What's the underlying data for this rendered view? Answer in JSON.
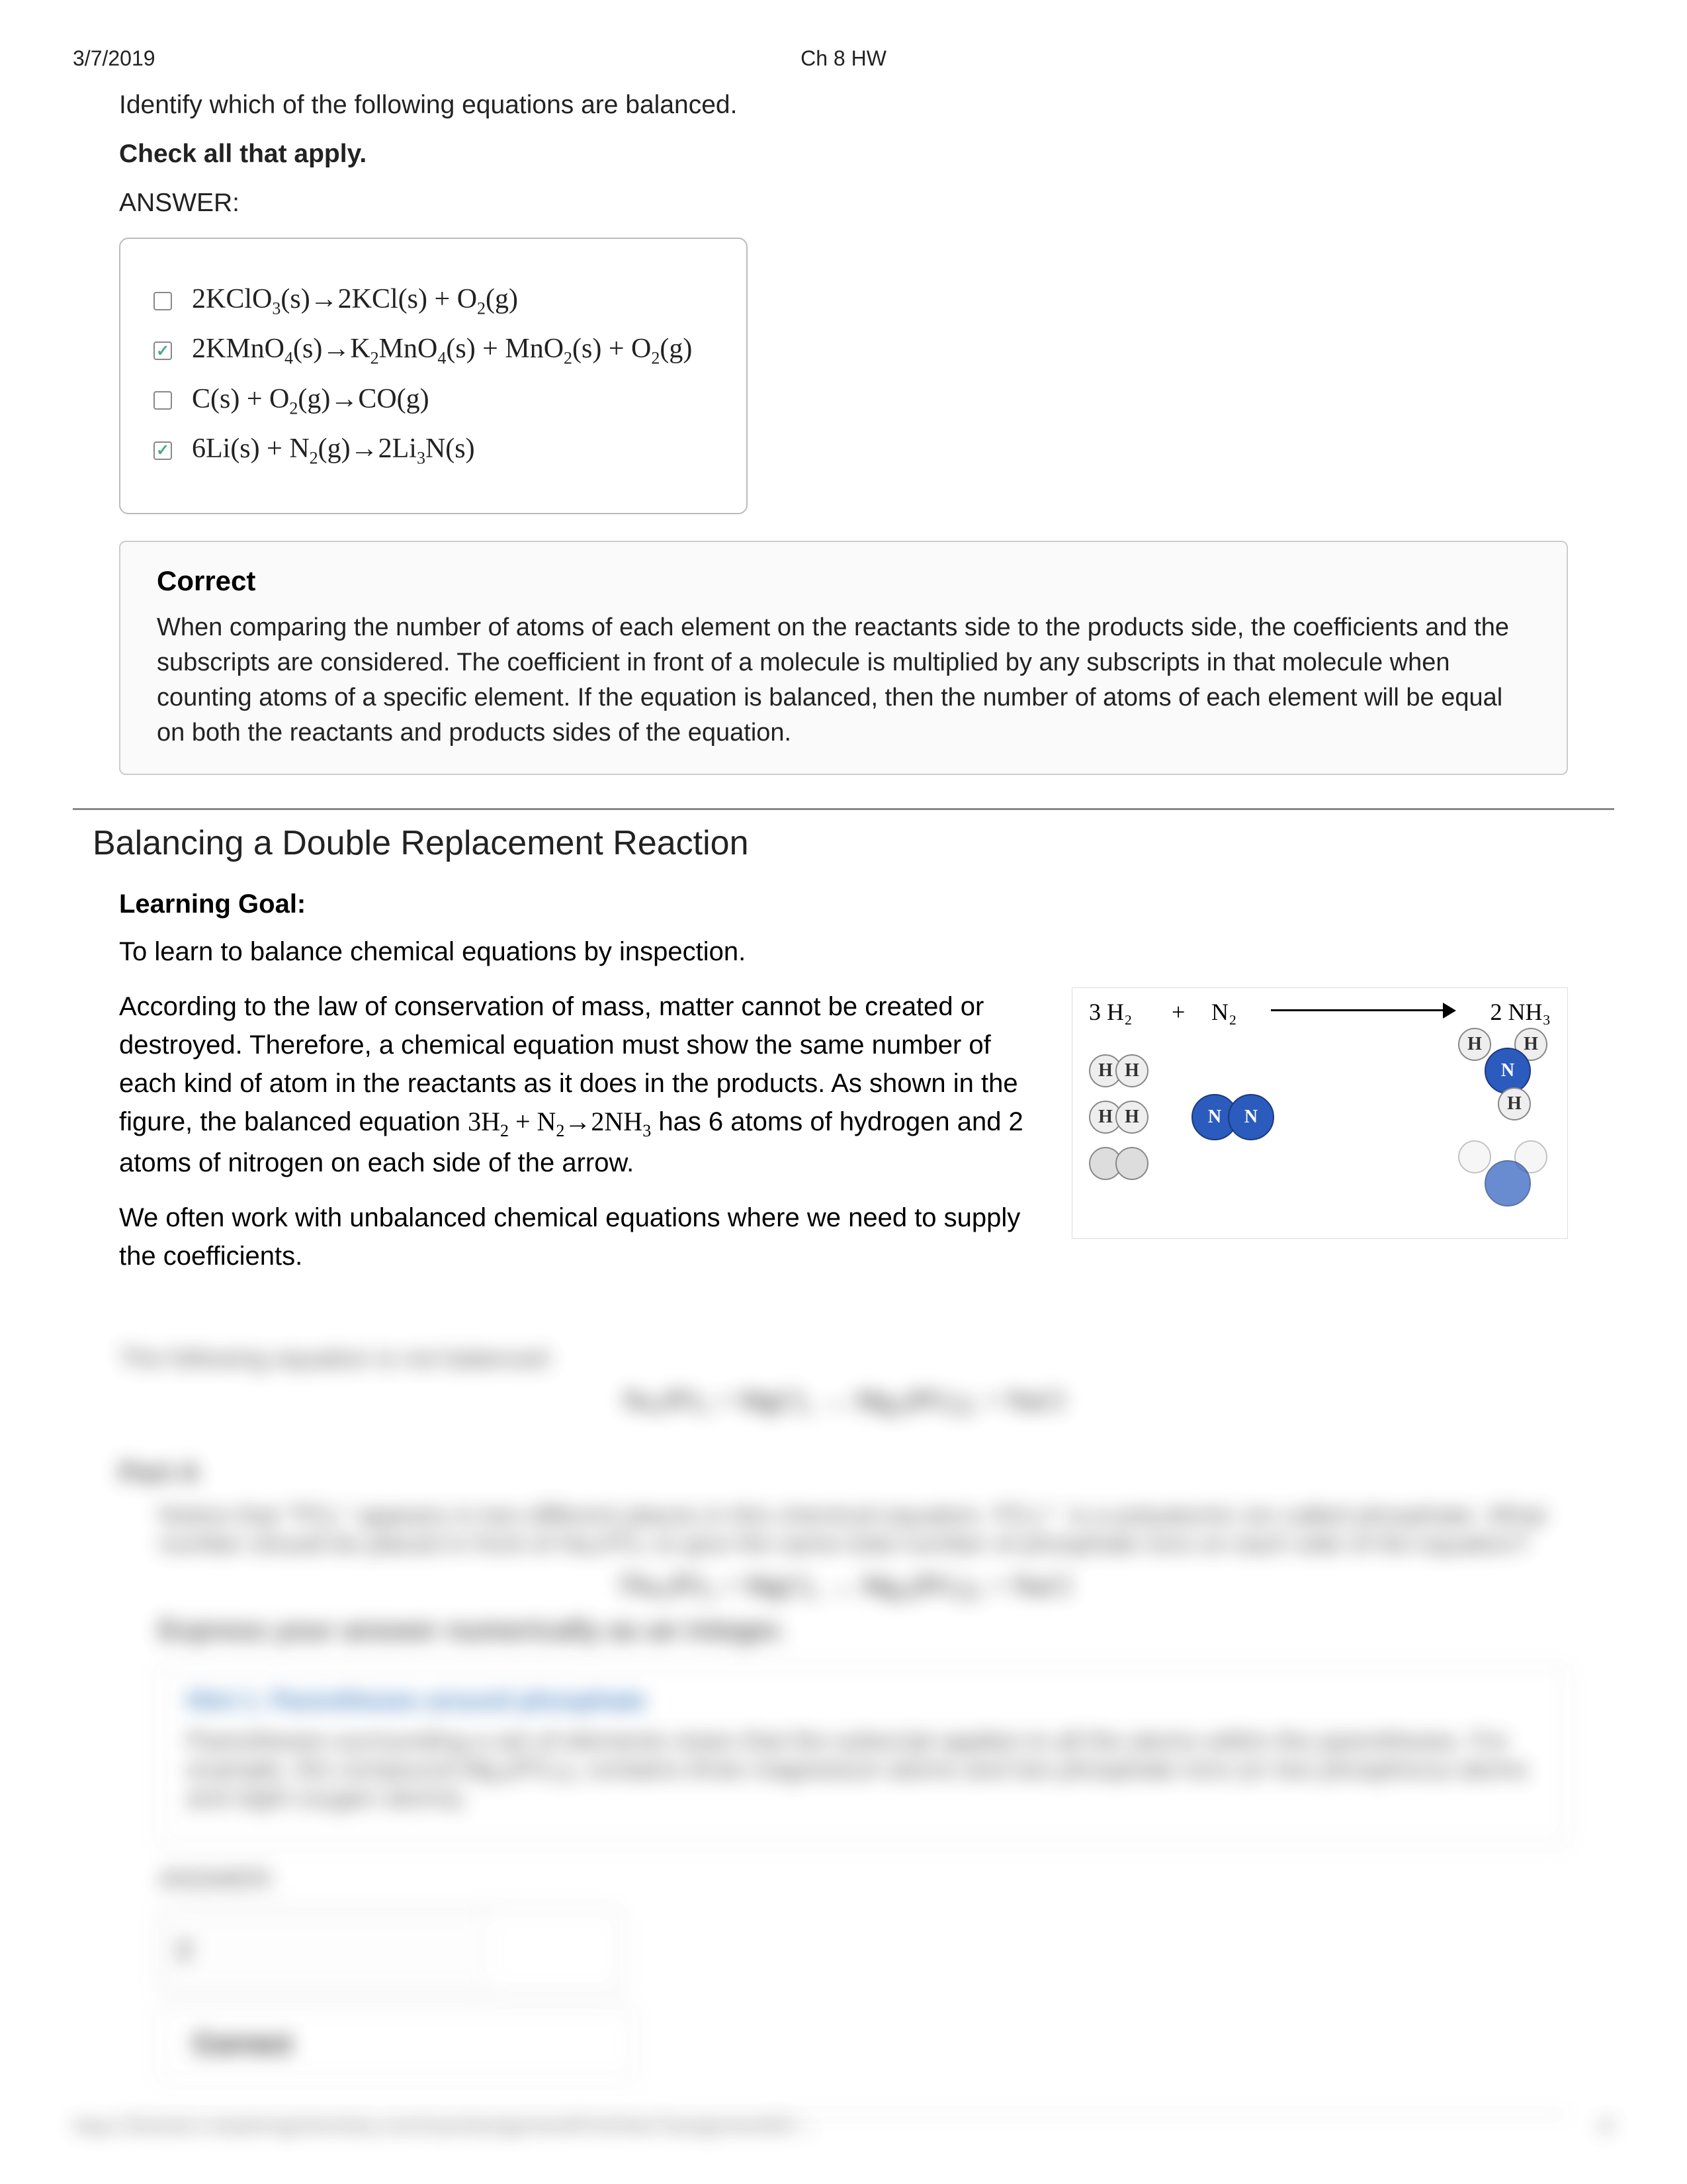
{
  "header": {
    "date": "3/7/2019",
    "title": "Ch 8 HW"
  },
  "question": {
    "prompt": "Identify which of the following equations are balanced.",
    "check": "Check all that apply.",
    "answer_label": "ANSWER:",
    "options": [
      {
        "checked": false,
        "html": "2KClO<sub>3</sub>(s)→2KCl(s) + O<sub>2</sub>(g)"
      },
      {
        "checked": true,
        "html": "2KMnO<sub>4</sub>(s)→K<sub>2</sub>MnO<sub>4</sub>(s) + MnO<sub>2</sub>(s) + O<sub>2</sub>(g)"
      },
      {
        "checked": false,
        "html": "C(s) + O<sub>2</sub>(g)→CO(g)"
      },
      {
        "checked": true,
        "html": "6Li(s) + N<sub>2</sub>(g)→2Li<sub>3</sub>N(s)"
      }
    ]
  },
  "correct": {
    "title": "Correct",
    "body": "When comparing the number of atoms of each element on the reactants side to the products side, the coefficients and the subscripts are considered. The coefficient in front of a molecule is multiplied by any subscripts in that molecule when counting atoms of a specific element. If the equation is balanced, then the number of atoms of each element will be equal on both the reactants and products sides of the equation."
  },
  "section": {
    "title": "Balancing a Double Replacement Reaction",
    "learning_goal_label": "Learning Goal:",
    "learning_goal": "To learn to balance chemical equations by inspection.",
    "para1a": "According to the law of conservation of mass, matter cannot be created or destroyed. Therefore, a chemical equation must show the same number of each kind of atom in the reactants as it does in the products. As shown in the figure, the balanced equation ",
    "eq": "3H<sub>2</sub> + N<sub>2</sub>→2NH<sub>3</sub>",
    "para1b": " has 6 atoms of hydrogen and 2 atoms of nitrogen on each side of the arrow.",
    "para2": "We often work with unbalanced chemical equations where we need to supply the coefficients."
  },
  "figure": {
    "left_label": "3 H₂",
    "plus": "+",
    "mid_label": "N₂",
    "right_label": "2 NH₃"
  },
  "atom_labels": {
    "H": "H",
    "N": "N"
  },
  "blurred": {
    "l1": "The following equation is not balanced:",
    "eq1": "Na₃PO₄ + MgCl₂ → Mg₃(PO₄)₂ + NaCl",
    "part": "Part A",
    "l2": "Notice that \"PO₄\" appears in two different places in this chemical equation. PO₄³⁻ is a polyatomic ion called phosphate. What number should be placed in front of Na₃PO₄ to give the same total number of phosphate ions on each side of the equation?",
    "eq2": "?Na₃PO₄ + MgCl₂ → Mg₃(PO₄)₂ + NaCl",
    "express": "Express your answer numerically as an integer.",
    "hint_title": "Hint 1. Parentheses around phosphate",
    "hint_body": "Parentheses surrounding a set of elements mean that the subscript applies to all the atoms within the parentheses. For example, the compound Mg₃(PO₄)₂ contains three magnesium atoms and two phosphate ions (or two phosphorus atoms and eight oxygen atoms).",
    "answer_label": "ANSWER:",
    "answer_value": "2",
    "correct": "Correct",
    "footer_url": "https://session.masteringchemistry.com/myct/assignmentPrintView?assignmentID=...",
    "footer_pg": "4/"
  },
  "colors": {
    "H_bg": "#eeeeee",
    "N_bg": "#2b5bbd",
    "border": "#bbbbbb",
    "hr": "#888888",
    "text": "#222222",
    "hint": "#2a6db8"
  }
}
